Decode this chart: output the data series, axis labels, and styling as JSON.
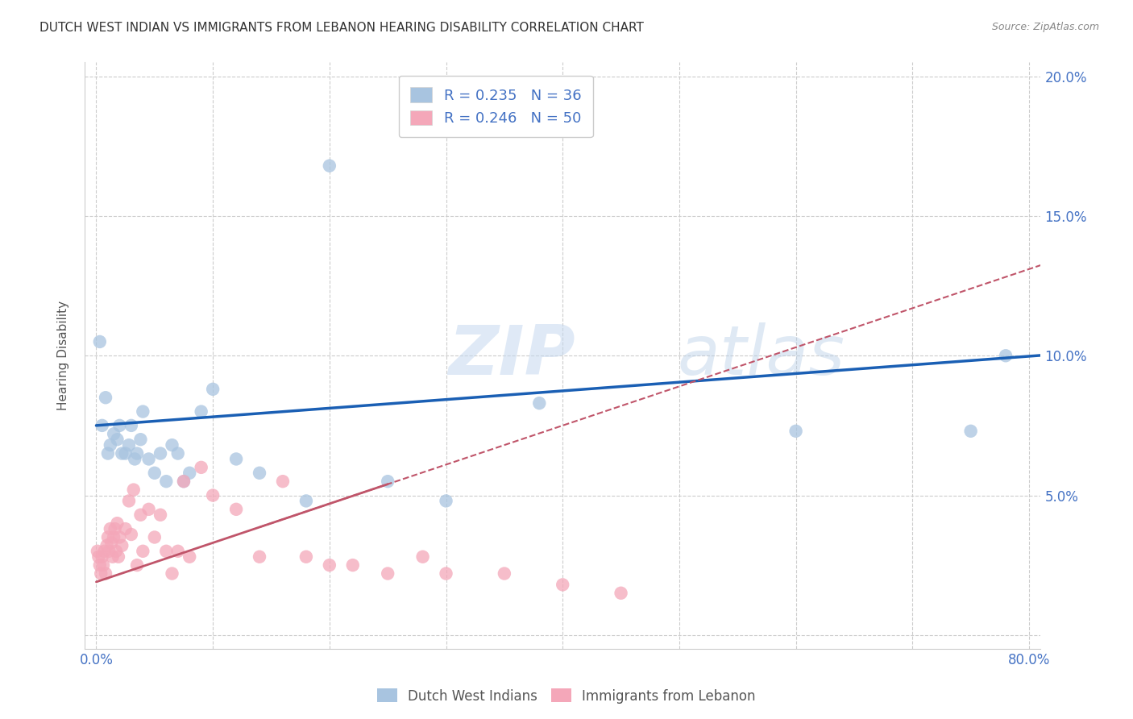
{
  "title": "DUTCH WEST INDIAN VS IMMIGRANTS FROM LEBANON HEARING DISABILITY CORRELATION CHART",
  "source": "Source: ZipAtlas.com",
  "ylabel": "Hearing Disability",
  "watermark": "ZIPatlas",
  "legend_entry1": {
    "color": "#a8c4e0",
    "R": 0.235,
    "N": 36,
    "label": "Dutch West Indians"
  },
  "legend_entry2": {
    "color": "#f4a7b9",
    "R": 0.246,
    "N": 50,
    "label": "Immigrants from Lebanon"
  },
  "blue_scatter_color": "#a8c4e0",
  "pink_scatter_color": "#f4a7b9",
  "blue_line_color": "#1a5fb4",
  "pink_line_color": "#c0556a",
  "xlim": [
    -0.01,
    0.81
  ],
  "ylim": [
    -0.005,
    0.205
  ],
  "xticks": [
    0.0,
    0.1,
    0.2,
    0.3,
    0.4,
    0.5,
    0.6,
    0.7,
    0.8
  ],
  "yticks": [
    0.0,
    0.05,
    0.1,
    0.15,
    0.2
  ],
  "xtick_labels": [
    "0.0%",
    "",
    "",
    "",
    "",
    "",
    "",
    "",
    "80.0%"
  ],
  "ytick_labels_right": [
    "",
    "5.0%",
    "10.0%",
    "15.0%",
    "20.0%"
  ],
  "blue_x": [
    0.003,
    0.005,
    0.008,
    0.01,
    0.012,
    0.015,
    0.018,
    0.02,
    0.022,
    0.025,
    0.028,
    0.03,
    0.033,
    0.035,
    0.038,
    0.04,
    0.045,
    0.05,
    0.055,
    0.06,
    0.065,
    0.07,
    0.075,
    0.08,
    0.09,
    0.1,
    0.12,
    0.14,
    0.18,
    0.2,
    0.25,
    0.3,
    0.38,
    0.6,
    0.75,
    0.78
  ],
  "blue_y": [
    0.105,
    0.075,
    0.085,
    0.065,
    0.068,
    0.072,
    0.07,
    0.075,
    0.065,
    0.065,
    0.068,
    0.075,
    0.063,
    0.065,
    0.07,
    0.08,
    0.063,
    0.058,
    0.065,
    0.055,
    0.068,
    0.065,
    0.055,
    0.058,
    0.08,
    0.088,
    0.063,
    0.058,
    0.048,
    0.168,
    0.055,
    0.048,
    0.083,
    0.073,
    0.073,
    0.1
  ],
  "pink_x": [
    0.001,
    0.002,
    0.003,
    0.004,
    0.005,
    0.006,
    0.007,
    0.008,
    0.009,
    0.01,
    0.011,
    0.012,
    0.013,
    0.014,
    0.015,
    0.016,
    0.017,
    0.018,
    0.019,
    0.02,
    0.022,
    0.025,
    0.028,
    0.03,
    0.032,
    0.035,
    0.038,
    0.04,
    0.045,
    0.05,
    0.055,
    0.06,
    0.065,
    0.07,
    0.075,
    0.08,
    0.09,
    0.1,
    0.12,
    0.14,
    0.16,
    0.18,
    0.2,
    0.22,
    0.25,
    0.28,
    0.3,
    0.35,
    0.4,
    0.45
  ],
  "pink_y": [
    0.03,
    0.028,
    0.025,
    0.022,
    0.028,
    0.025,
    0.03,
    0.022,
    0.032,
    0.035,
    0.03,
    0.038,
    0.033,
    0.028,
    0.035,
    0.038,
    0.03,
    0.04,
    0.028,
    0.035,
    0.032,
    0.038,
    0.048,
    0.036,
    0.052,
    0.025,
    0.043,
    0.03,
    0.045,
    0.035,
    0.043,
    0.03,
    0.022,
    0.03,
    0.055,
    0.028,
    0.06,
    0.05,
    0.045,
    0.028,
    0.055,
    0.028,
    0.025,
    0.025,
    0.022,
    0.028,
    0.022,
    0.022,
    0.018,
    0.015
  ],
  "title_fontsize": 11,
  "axis_label_fontsize": 11,
  "tick_fontsize": 12,
  "tick_color": "#4472c4",
  "title_color": "#333333",
  "grid_color": "#cccccc",
  "background_color": "#ffffff"
}
